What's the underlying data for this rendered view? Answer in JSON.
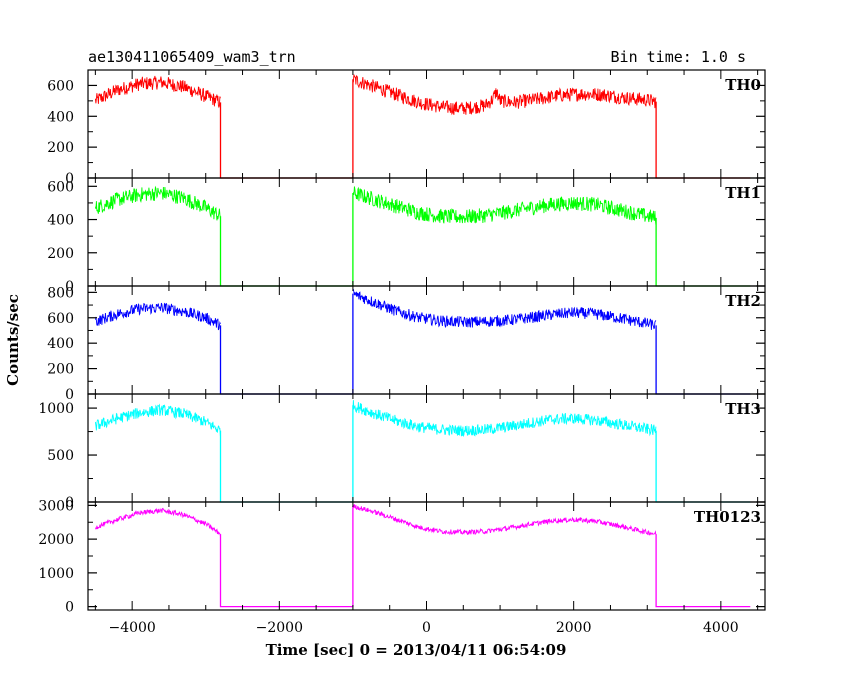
{
  "header": {
    "title": "ae130411065409_wam3_trn",
    "bin_time": "Bin time: 1.0 s"
  },
  "chart_data": {
    "type": "line",
    "xlabel": "Time [sec] 0 = 2013/04/11 06:54:09",
    "ylabel": "Counts/sec",
    "xlim": [
      -4600,
      4600
    ],
    "xticks": [
      -4000,
      -2000,
      0,
      2000,
      4000
    ],
    "xtick_labels": [
      "−4000",
      "−2000",
      "0",
      "2000",
      "4000"
    ],
    "gaps": [
      [
        -2800,
        -1000
      ],
      [
        3120,
        4400
      ]
    ],
    "segments": [
      [
        -4500,
        -2800
      ],
      [
        -1000,
        3120
      ]
    ],
    "panels": [
      {
        "name": "TH0",
        "color": "#ff0000",
        "ylim": [
          0,
          700
        ],
        "yticks": [
          0,
          200,
          400,
          600
        ],
        "x": [
          -4500,
          -4200,
          -3900,
          -3600,
          -3300,
          -3000,
          -2800,
          -1000,
          -700,
          -400,
          -100,
          200,
          500,
          800,
          900,
          950,
          1000,
          1200,
          1500,
          1800,
          2100,
          2400,
          2700,
          3000,
          3120
        ],
        "y": [
          500,
          570,
          610,
          620,
          590,
          530,
          490,
          640,
          590,
          540,
          490,
          460,
          450,
          470,
          510,
          560,
          500,
          490,
          510,
          535,
          545,
          540,
          520,
          505,
          495
        ],
        "noise": 45
      },
      {
        "name": "TH1",
        "color": "#00ff00",
        "ylim": [
          0,
          650
        ],
        "yticks": [
          0,
          200,
          400,
          600
        ],
        "x": [
          -4500,
          -4200,
          -3900,
          -3600,
          -3300,
          -3000,
          -2800,
          -1000,
          -700,
          -400,
          -100,
          200,
          500,
          800,
          1100,
          1400,
          1700,
          2000,
          2300,
          2600,
          2900,
          3120
        ],
        "y": [
          470,
          520,
          550,
          560,
          530,
          470,
          420,
          560,
          520,
          480,
          440,
          420,
          415,
          425,
          445,
          470,
          490,
          500,
          490,
          460,
          430,
          410
        ],
        "noise": 45
      },
      {
        "name": "TH2",
        "color": "#0000ff",
        "ylim": [
          0,
          850
        ],
        "yticks": [
          0,
          200,
          400,
          600,
          800
        ],
        "x": [
          -4500,
          -4200,
          -3900,
          -3600,
          -3300,
          -3000,
          -2800,
          -1000,
          -700,
          -400,
          -100,
          200,
          500,
          800,
          1100,
          1400,
          1700,
          2000,
          2300,
          2600,
          2900,
          3120
        ],
        "y": [
          570,
          630,
          670,
          680,
          650,
          600,
          540,
          790,
          720,
          650,
          600,
          575,
          565,
          570,
          580,
          600,
          625,
          640,
          630,
          600,
          565,
          540
        ],
        "noise": 45
      },
      {
        "name": "TH3",
        "color": "#00ffff",
        "ylim": [
          0,
          1150
        ],
        "yticks": [
          0,
          500,
          1000
        ],
        "x": [
          -4500,
          -4200,
          -3900,
          -3600,
          -3300,
          -3000,
          -2800,
          -1000,
          -700,
          -400,
          -100,
          200,
          500,
          800,
          1100,
          1400,
          1700,
          2000,
          2300,
          2600,
          2900,
          3120
        ],
        "y": [
          810,
          890,
          950,
          980,
          940,
          850,
          760,
          1030,
          940,
          860,
          800,
          770,
          760,
          770,
          800,
          840,
          880,
          890,
          870,
          830,
          790,
          760
        ],
        "noise": 60
      },
      {
        "name": "TH0123",
        "color": "#ff00ff",
        "ylim": [
          -100,
          3100
        ],
        "yticks": [
          0,
          1000,
          2000,
          3000
        ],
        "x": [
          -4500,
          -4200,
          -3900,
          -3600,
          -3300,
          -3000,
          -2800,
          -1000,
          -700,
          -400,
          -100,
          200,
          500,
          800,
          1100,
          1400,
          1700,
          2000,
          2300,
          2600,
          2900,
          3120
        ],
        "y": [
          2350,
          2580,
          2780,
          2850,
          2720,
          2450,
          2150,
          2980,
          2800,
          2580,
          2350,
          2230,
          2200,
          2230,
          2320,
          2440,
          2540,
          2580,
          2530,
          2400,
          2250,
          2150
        ],
        "noise": 70
      }
    ]
  }
}
